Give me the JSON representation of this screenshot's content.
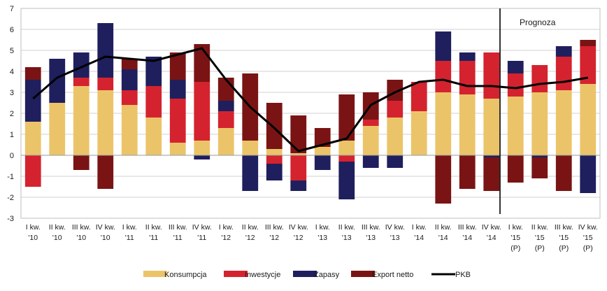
{
  "chart_data": {
    "type": "bar",
    "stacked": true,
    "title": "",
    "xlabel": "",
    "ylabel": "",
    "ylim": [
      -3,
      7
    ],
    "yticks": [
      -3,
      -2,
      -1,
      0,
      1,
      2,
      3,
      4,
      5,
      6,
      7
    ],
    "grid": true,
    "legend_position": "bottom",
    "annotation": "Prognoza",
    "categories": [
      [
        "I kw.",
        "'10"
      ],
      [
        "II kw.",
        "'10"
      ],
      [
        "III kw.",
        "'10"
      ],
      [
        "IV kw.",
        "'10"
      ],
      [
        "I kw.",
        "'11"
      ],
      [
        "II kw.",
        "'11"
      ],
      [
        "III kw.",
        "'11"
      ],
      [
        "IV kw.",
        "'11"
      ],
      [
        "I kw.",
        "'12"
      ],
      [
        "II kw.",
        "'12"
      ],
      [
        "III kw.",
        "'12"
      ],
      [
        "IV kw.",
        "'12"
      ],
      [
        "I kw.",
        "'13"
      ],
      [
        "II kw.",
        "'13"
      ],
      [
        "III kw.",
        "'13"
      ],
      [
        "IV kw.",
        "'13"
      ],
      [
        "I kw.",
        "'14"
      ],
      [
        "II kw.",
        "'14"
      ],
      [
        "III kw.",
        "'14"
      ],
      [
        "IV kw.",
        "'14"
      ],
      [
        "I kw.",
        "'15",
        "(P)"
      ],
      [
        "II kw.",
        "'15",
        "(P)"
      ],
      [
        "III kw.",
        "'15",
        "(P)"
      ],
      [
        "IV kw.",
        "'15",
        "(P)"
      ]
    ],
    "series": [
      {
        "name": "Konsumpcja",
        "type": "bar",
        "color": "#EBC46A",
        "values": [
          1.6,
          2.5,
          3.3,
          3.1,
          2.4,
          1.8,
          0.6,
          0.7,
          1.3,
          0.7,
          0.3,
          0.1,
          0.4,
          0.7,
          1.4,
          1.8,
          2.1,
          3.0,
          2.9,
          2.7,
          2.8,
          3.0,
          3.1,
          3.4
        ]
      },
      {
        "name": "Inwestycje",
        "type": "bar",
        "color": "#D4232F",
        "values": [
          -1.5,
          0.0,
          0.4,
          0.6,
          0.7,
          1.5,
          2.1,
          2.8,
          0.8,
          0.0,
          -0.4,
          -1.2,
          0.0,
          -0.3,
          0.3,
          0.8,
          1.4,
          1.5,
          1.6,
          2.2,
          1.1,
          1.3,
          1.6,
          1.8
        ]
      },
      {
        "name": "Zapasy",
        "type": "bar",
        "color": "#1F1F5E",
        "values": [
          2.0,
          2.1,
          1.2,
          2.6,
          1.0,
          1.4,
          0.9,
          -0.2,
          0.5,
          -1.7,
          -0.8,
          -0.5,
          -0.7,
          -1.8,
          -0.6,
          -0.6,
          0.0,
          1.4,
          0.4,
          -0.1,
          0.6,
          -0.1,
          0.5,
          -1.8
        ]
      },
      {
        "name": "Export netto",
        "type": "bar",
        "color": "#7A1414",
        "values": [
          0.6,
          0.0,
          -0.7,
          -1.6,
          0.5,
          0.0,
          1.3,
          1.8,
          1.1,
          3.2,
          2.2,
          1.8,
          0.9,
          2.2,
          1.3,
          1.0,
          0.0,
          -2.3,
          -1.6,
          -1.6,
          -1.3,
          -1.0,
          -1.7,
          0.3
        ]
      },
      {
        "name": "PKB",
        "type": "line",
        "color": "#000000",
        "values": [
          2.7,
          3.7,
          4.2,
          4.7,
          4.6,
          4.5,
          4.8,
          5.1,
          3.6,
          2.3,
          1.3,
          0.2,
          0.5,
          0.8,
          2.4,
          3.0,
          3.5,
          3.6,
          3.3,
          3.3,
          3.2,
          3.4,
          3.5,
          3.7
        ]
      }
    ]
  }
}
